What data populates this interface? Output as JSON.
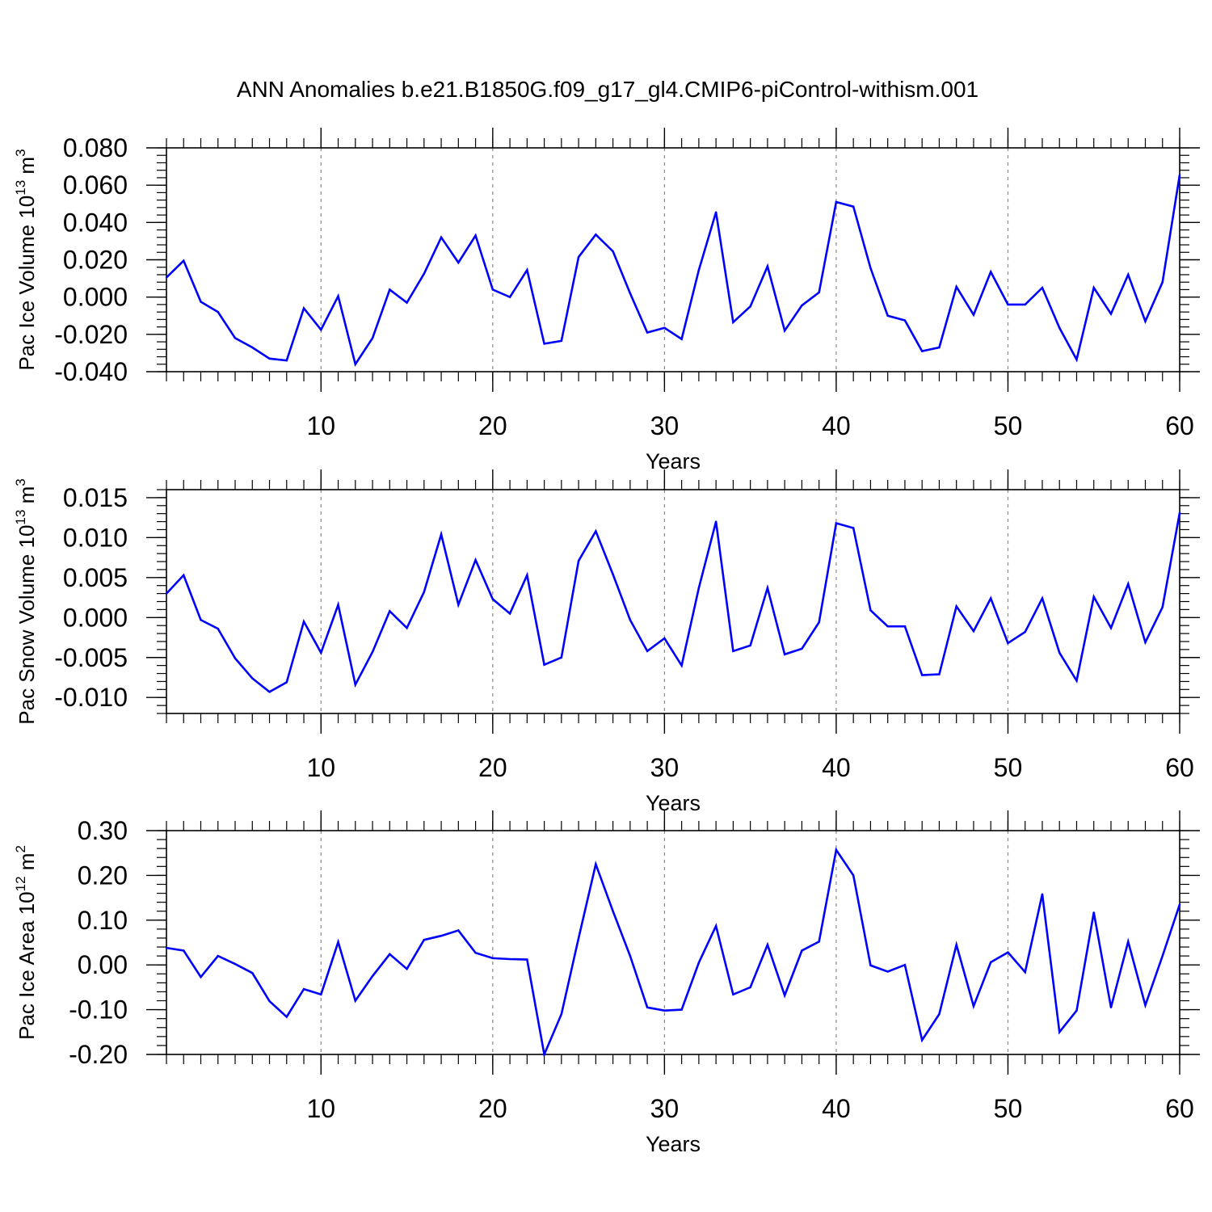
{
  "title": "ANN Anomalies b.e21.B1850G.f09_g17_gl4.CMIP6-piControl-withism.001",
  "colors": {
    "line": "#0000ff",
    "axis": "#000000",
    "grid": "#888888"
  },
  "chart_data": [
    {
      "type": "line",
      "ylabel": "Pac Ice Volume 10",
      "ylabel_exponent": "13",
      "ylabel_unit": " m",
      "ylabel_unit_exponent": "3",
      "xlabel": "Years",
      "xlim": [
        1,
        60
      ],
      "ylim": [
        -0.04,
        0.08
      ],
      "xticks": [
        10,
        20,
        30,
        40,
        50,
        60
      ],
      "xtick_labels": [
        "10",
        "20",
        "30",
        "40",
        "50",
        "60"
      ],
      "yticks": [
        -0.04,
        -0.02,
        0.0,
        0.02,
        0.04,
        0.06,
        0.08
      ],
      "ytick_labels": [
        "-0.040",
        "-0.020",
        "0.000",
        "0.020",
        "0.040",
        "0.060",
        "0.080"
      ],
      "yminor_step": 0.004,
      "series": [
        {
          "name": "Pac Ice Volume",
          "values": [
            0.0105,
            0.0195,
            -0.0025,
            -0.008,
            -0.022,
            -0.027,
            -0.033,
            -0.034,
            -0.006,
            -0.0175,
            0.0005,
            -0.036,
            -0.022,
            0.004,
            -0.003,
            0.0125,
            0.032,
            0.0185,
            0.033,
            0.004,
            0.0,
            0.0145,
            -0.025,
            -0.0235,
            0.0215,
            0.0335,
            0.0245,
            0.002,
            -0.019,
            -0.0165,
            -0.0225,
            0.0145,
            0.0455,
            -0.0135,
            -0.005,
            0.0165,
            -0.018,
            -0.0045,
            0.0025,
            0.051,
            0.0485,
            0.0155,
            -0.01,
            -0.0125,
            -0.029,
            -0.027,
            0.0055,
            -0.0095,
            0.0135,
            -0.004,
            -0.004,
            0.005,
            -0.0165,
            -0.0335,
            0.005,
            -0.009,
            0.012,
            -0.013,
            0.008,
            0.0655
          ]
        }
      ]
    },
    {
      "type": "line",
      "ylabel": "Pac Snow Volume 10",
      "ylabel_exponent": "13",
      "ylabel_unit": " m",
      "ylabel_unit_exponent": "3",
      "xlabel": "Years",
      "xlim": [
        1,
        60
      ],
      "ylim": [
        -0.012,
        0.016
      ],
      "xticks": [
        10,
        20,
        30,
        40,
        50,
        60
      ],
      "xtick_labels": [
        "10",
        "20",
        "30",
        "40",
        "50",
        "60"
      ],
      "yticks": [
        -0.01,
        -0.005,
        0.0,
        0.005,
        0.01,
        0.015
      ],
      "ytick_labels": [
        "-0.010",
        "-0.005",
        "0.000",
        "0.005",
        "0.010",
        "0.015"
      ],
      "yminor_step": 0.001,
      "series": [
        {
          "name": "Pac Snow Volume",
          "values": [
            0.003,
            0.0053,
            -0.0003,
            -0.0014,
            -0.0051,
            -0.0076,
            -0.0093,
            -0.0081,
            -0.0005,
            -0.0044,
            0.0016,
            -0.0084,
            -0.0043,
            0.0008,
            -0.0013,
            0.0032,
            0.0104,
            0.0016,
            0.0072,
            0.0023,
            0.0005,
            0.0053,
            -0.0059,
            -0.005,
            0.0071,
            0.0108,
            0.0054,
            -0.0003,
            -0.0042,
            -0.0026,
            -0.006,
            0.0037,
            0.012,
            -0.0042,
            -0.0035,
            0.0037,
            -0.0046,
            -0.0039,
            -0.0006,
            0.0118,
            0.0112,
            0.0009,
            -0.0011,
            -0.0011,
            -0.0072,
            -0.0071,
            0.0014,
            -0.0017,
            0.0024,
            -0.0032,
            -0.0018,
            0.0024,
            -0.0044,
            -0.0079,
            0.0026,
            -0.0013,
            0.0042,
            -0.0031,
            0.0013,
            0.0131
          ]
        }
      ]
    },
    {
      "type": "line",
      "ylabel": "Pac Ice Area 10",
      "ylabel_exponent": "12",
      "ylabel_unit": " m",
      "ylabel_unit_exponent": "2",
      "xlabel": "Years",
      "xlim": [
        1,
        60
      ],
      "ylim": [
        -0.2,
        0.3
      ],
      "xticks": [
        10,
        20,
        30,
        40,
        50,
        60
      ],
      "xtick_labels": [
        "10",
        "20",
        "30",
        "40",
        "50",
        "60"
      ],
      "yticks": [
        -0.2,
        -0.1,
        0.0,
        0.1,
        0.2,
        0.3
      ],
      "ytick_labels": [
        "-0.20",
        "-0.10",
        "0.00",
        "0.10",
        "0.20",
        "0.30"
      ],
      "yminor_step": 0.02,
      "series": [
        {
          "name": "Pac Ice Area",
          "values": [
            0.038,
            0.032,
            -0.027,
            0.02,
            0.002,
            -0.018,
            -0.081,
            -0.116,
            -0.054,
            -0.066,
            0.051,
            -0.08,
            -0.025,
            0.024,
            -0.009,
            0.056,
            0.065,
            0.077,
            0.027,
            0.015,
            0.013,
            0.012,
            -0.2,
            -0.11,
            0.06,
            0.225,
            0.12,
            0.02,
            -0.095,
            -0.102,
            -0.1,
            0.005,
            0.087,
            -0.066,
            -0.05,
            0.045,
            -0.068,
            0.032,
            0.052,
            0.257,
            0.2,
            -0.001,
            -0.015,
            0.0,
            -0.168,
            -0.11,
            0.045,
            -0.092,
            0.006,
            0.028,
            -0.016,
            0.158,
            -0.15,
            -0.102,
            0.117,
            -0.095,
            0.052,
            -0.09,
            0.02,
            0.135
          ]
        }
      ]
    }
  ]
}
